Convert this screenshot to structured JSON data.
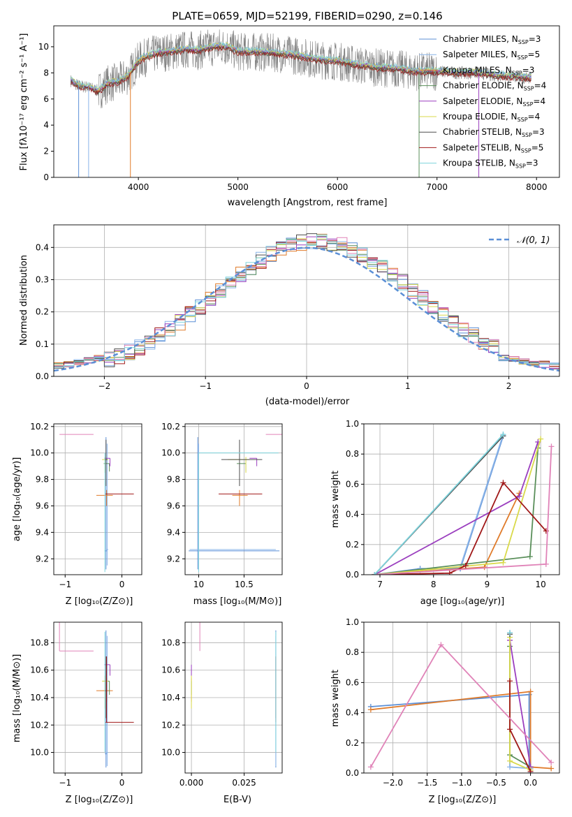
{
  "chart_data": [
    {
      "id": "spectrum",
      "type": "line",
      "title": "PLATE=0659, MJD=52199, FIBERID=0290, z=0.146",
      "xlabel": "wavelength [Angstrom, rest frame]",
      "ylabel": "Flux [fλ10⁻¹⁷ erg cm⁻² s⁻¹ A⁻¹]",
      "xlim": [
        3150,
        8230
      ],
      "ylim": [
        0,
        11.6
      ],
      "xticks": [
        4000,
        5000,
        6000,
        7000,
        8000
      ],
      "yticks": [
        0,
        2,
        4,
        6,
        8,
        10
      ],
      "grid": false,
      "legend_position": "upper right",
      "legend": [
        {
          "label": "Chabrier MILES, N",
          "sub": "SSP",
          "suffix": "=3",
          "color": "#5b8fd6"
        },
        {
          "label": "Salpeter MILES, N",
          "sub": "SSP",
          "suffix": "=5",
          "color": "#8ab4e8"
        },
        {
          "label": "Kroupa MILES, N",
          "sub": "SSP",
          "suffix": "=3",
          "color": "#e07b2a"
        },
        {
          "label": "Chabrier ELODIE, N",
          "sub": "SSP",
          "suffix": "=4",
          "color": "#5a8f5a"
        },
        {
          "label": "Salpeter ELODIE, N",
          "sub": "SSP",
          "suffix": "=4",
          "color": "#9b3fbf"
        },
        {
          "label": "Kroupa ELODIE, N",
          "sub": "SSP",
          "suffix": "=4",
          "color": "#d9d94a"
        },
        {
          "label": "Chabrier STELIB, N",
          "sub": "SSP",
          "suffix": "=3",
          "color": "#4d4d4d"
        },
        {
          "label": "Salpeter STELIB, N",
          "sub": "SSP",
          "suffix": "=5",
          "color": "#a01818"
        },
        {
          "label": "Kroupa STELIB, N",
          "sub": "SSP",
          "suffix": "=3",
          "color": "#7dd3dc"
        }
      ],
      "model_continuum": {
        "x": [
          3320,
          3400,
          3500,
          3600,
          3700,
          3800,
          3900,
          4000,
          4100,
          4200,
          4300,
          4400,
          4500,
          4600,
          4700,
          4800,
          4900,
          5000,
          5200,
          5400,
          5600,
          5800,
          6000,
          6200,
          6400,
          6600,
          6800,
          7000,
          7200,
          7400,
          7600,
          7800,
          7950
        ],
        "y": [
          7.4,
          7.0,
          6.9,
          6.6,
          7.2,
          7.3,
          7.8,
          8.9,
          9.3,
          9.5,
          9.6,
          9.7,
          9.8,
          9.7,
          9.9,
          10.0,
          10.0,
          9.6,
          9.6,
          9.5,
          9.3,
          9.0,
          8.9,
          8.6,
          8.4,
          8.3,
          8.1,
          8.1,
          8.0,
          8.0,
          7.8,
          7.7,
          7.6
        ]
      },
      "dropouts": [
        3400,
        3500,
        3920,
        6820,
        7420
      ]
    },
    {
      "id": "residuals",
      "type": "line",
      "xlabel": "(data-model)/error",
      "ylabel": "Normed distribution",
      "xlim": [
        -2.5,
        2.5
      ],
      "ylim": [
        0,
        0.47
      ],
      "xticks": [
        -2,
        -1,
        0,
        1,
        2
      ],
      "yticks": [
        0.0,
        0.1,
        0.2,
        0.3,
        0.4
      ],
      "grid": true,
      "legend_position": "upper right",
      "reference_curve": {
        "label": "𝒩(0, 1)",
        "mean": 0,
        "sigma": 1,
        "color": "#5b8fd6"
      },
      "bin_width": 0.1
    },
    {
      "id": "age_vs_Z",
      "type": "scatter",
      "xlabel": "Z [log₁₀(Z/Z⊙)]",
      "ylabel": "age  [log₁₀(age/yr)]",
      "xlim": [
        -1.2,
        0.35
      ],
      "ylim": [
        9.08,
        10.22
      ],
      "xticks": [
        -1,
        0
      ],
      "yticks": [
        9.2,
        9.4,
        9.6,
        9.8,
        10.0,
        10.2
      ],
      "grid": true
    },
    {
      "id": "age_vs_mass",
      "type": "scatter",
      "xlabel": "mass [log₁₀(M/M⊙)]",
      "ylabel": "",
      "xlim": [
        9.85,
        10.92
      ],
      "ylim": [
        9.08,
        10.22
      ],
      "xticks": [
        10.0,
        10.5
      ],
      "yticks": [
        9.2,
        9.4,
        9.6,
        9.8,
        10.0,
        10.2
      ],
      "grid": true
    },
    {
      "id": "massweight_vs_age",
      "type": "line",
      "xlabel": "age  [log₁₀(age/yr)]",
      "ylabel": "mass weight",
      "xlim": [
        6.7,
        10.35
      ],
      "ylim": [
        0,
        1.0
      ],
      "xticks": [
        7,
        8,
        9,
        10
      ],
      "yticks": [
        0.0,
        0.2,
        0.4,
        0.6,
        0.8,
        1.0
      ],
      "grid": true
    },
    {
      "id": "mass_vs_Z",
      "type": "scatter",
      "xlabel": "Z [log₁₀(Z/Z⊙)]",
      "ylabel": "mass [log₁₀(M/M⊙)]",
      "xlim": [
        -1.2,
        0.35
      ],
      "ylim": [
        9.85,
        10.95
      ],
      "xticks": [
        -1,
        0
      ],
      "yticks": [
        10.0,
        10.2,
        10.4,
        10.6,
        10.8
      ],
      "grid": true
    },
    {
      "id": "mass_vs_ebv",
      "type": "scatter",
      "xlabel": "E(B-V)",
      "ylabel": "",
      "xlim": [
        -0.003,
        0.043
      ],
      "ylim": [
        9.85,
        10.95
      ],
      "xticks": [
        0.0,
        0.025
      ],
      "xticklabels": [
        "0.000",
        "0.025"
      ],
      "yticks": [
        10.0,
        10.2,
        10.4,
        10.6,
        10.8
      ],
      "grid": true
    },
    {
      "id": "massweight_vs_Z",
      "type": "line",
      "xlabel": "Z [log₁₀(Z/Z⊙)]",
      "ylabel": "mass weight",
      "xlim": [
        -2.42,
        0.42
      ],
      "ylim": [
        0,
        1.0
      ],
      "xticks": [
        -2.0,
        -1.5,
        -1.0,
        -0.5,
        0.0
      ],
      "xticklabels": [
        "−2.0",
        "−1.5",
        "−1.0",
        "−0.5",
        "0.0"
      ],
      "yticks": [
        0.0,
        0.2,
        0.4,
        0.6,
        0.8,
        1.0
      ],
      "grid": true
    }
  ],
  "models": [
    {
      "color": "#5b8fd6",
      "Z": -0.28,
      "Zerr": [
        0.02,
        0.02
      ],
      "age": 9.26,
      "ageerr": [
        0.14,
        0.86
      ],
      "mass": 9.99,
      "masserr": [
        0.1,
        0.9
      ],
      "ebv": 0.04,
      "ages": [
        6.9,
        7.75,
        8.5,
        9.3
      ],
      "w_age": [
        0.0,
        0.04,
        0.04,
        0.92
      ],
      "Zs": [
        -2.32,
        -0.02,
        -0.02,
        0.0
      ],
      "w_Z": [
        0.44,
        0.52,
        0.04,
        0.0
      ]
    },
    {
      "color": "#8ab4e8",
      "Z": -0.26,
      "Zerr": [
        0.02,
        0.02
      ],
      "age": 9.27,
      "ageerr": [
        0.12,
        0.8
      ],
      "mass": 10.0,
      "masserr": [
        0.1,
        0.85
      ],
      "ebv": 0.04,
      "ages": [
        6.9,
        7.75,
        8.5,
        9.3
      ],
      "w_age": [
        0.0,
        0.03,
        0.05,
        0.93
      ],
      "Zs": [
        -0.3,
        -0.3,
        0.0,
        0.0
      ],
      "w_Z": [
        0.93,
        0.04,
        0.03,
        0.0
      ]
    },
    {
      "color": "#e07b2a",
      "Z": -0.27,
      "Zerr": [
        0.18,
        0.11
      ],
      "age": 9.68,
      "ageerr": [
        0.08,
        0.04
      ],
      "mass": 10.45,
      "masserr": [
        0.08,
        0.09
      ],
      "ebv": 0.0,
      "ages": [
        6.9,
        8.95,
        9.6
      ],
      "w_age": [
        0.0,
        0.05,
        0.54
      ],
      "Zs": [
        -2.32,
        0.0,
        0.0,
        0.3
      ],
      "w_Z": [
        0.42,
        0.54,
        0.04,
        0.03
      ]
    },
    {
      "color": "#5a8f5a",
      "Z": -0.22,
      "Zerr": [
        0.1,
        0.0
      ],
      "age": 9.92,
      "ageerr": [
        0.06,
        0.0
      ],
      "mass": 10.52,
      "masserr": [
        0.1,
        0.0
      ],
      "ebv": 0.0,
      "ages": [
        6.9,
        9.8,
        9.95
      ],
      "w_age": [
        0.0,
        0.12,
        0.84
      ],
      "Zs": [
        -0.3,
        -0.3,
        0.0
      ],
      "w_Z": [
        0.84,
        0.12,
        0.04
      ]
    },
    {
      "color": "#9b3fbf",
      "Z": -0.21,
      "Zerr": [
        0.1,
        0.0
      ],
      "age": 9.96,
      "ageerr": [
        0.06,
        0.0
      ],
      "mass": 10.64,
      "masserr": [
        0.08,
        0.0
      ],
      "ebv": 0.0,
      "ages": [
        6.9,
        9.6,
        9.95
      ],
      "w_age": [
        0.0,
        0.52,
        0.88
      ],
      "Zs": [
        -0.3,
        0.0
      ],
      "w_Z": [
        0.88,
        0.04
      ]
    },
    {
      "color": "#d9d94a",
      "Z": -0.3,
      "Zerr": [
        0.05,
        0.06
      ],
      "age": 9.95,
      "ageerr": [
        0.1,
        0.02
      ],
      "mass": 10.52,
      "masserr": [
        0.2,
        0.04
      ],
      "ebv": 0.0,
      "ages": [
        6.9,
        9.3,
        10.0
      ],
      "w_age": [
        0.0,
        0.08,
        0.9
      ],
      "Zs": [
        -0.3,
        -0.3,
        0.0
      ],
      "w_Z": [
        0.9,
        0.08,
        0.02
      ]
    },
    {
      "color": "#4d4d4d",
      "Z": -0.28,
      "Zerr": [
        0.02,
        0.02
      ],
      "age": 9.95,
      "ageerr": [
        0.2,
        0.15
      ],
      "mass": 10.45,
      "masserr": [
        0.2,
        0.25
      ],
      "ebv": 0.04,
      "ages": [
        6.9,
        9.3
      ],
      "w_age": [
        0.0,
        0.92
      ],
      "Zs": [
        -0.3
      ],
      "w_Z": [
        0.92
      ]
    },
    {
      "color": "#a01818",
      "Z": -0.27,
      "Zerr": [
        0.02,
        0.48
      ],
      "age": 9.69,
      "ageerr": [
        0.0,
        0.0
      ],
      "mass": 10.22,
      "masserr": [
        0.0,
        0.48
      ],
      "ebv": 0.04,
      "ages": [
        6.9,
        8.3,
        8.6,
        9.3,
        10.1
      ],
      "w_age": [
        0.0,
        0.01,
        0.06,
        0.61,
        0.29
      ],
      "Zs": [
        -0.3,
        -0.3,
        0.0
      ],
      "w_Z": [
        0.61,
        0.29,
        0.01
      ]
    },
    {
      "color": "#e083b8",
      "Z": -1.1,
      "Zerr": [
        0.0,
        0.6
      ],
      "age": 10.14,
      "ageerr": [
        0.0,
        0.0
      ],
      "mass": 10.74,
      "masserr": [
        0.0,
        0.36
      ],
      "ebv": 0.004,
      "ages": [
        6.9,
        10.1,
        10.2
      ],
      "w_age": [
        0.0,
        0.07,
        0.85
      ],
      "Zs": [
        -2.32,
        -1.3,
        0.3
      ],
      "w_Z": [
        0.04,
        0.85,
        0.07
      ]
    },
    {
      "color": "#7dd3dc",
      "Z": -0.3,
      "Zerr": [
        0.0,
        0.0
      ],
      "age": 10.0,
      "ageerr": [
        0.9,
        0.0
      ],
      "mass": 10.0,
      "masserr": [
        0.0,
        0.88
      ],
      "ebv": 0.04,
      "ages": [
        6.9,
        9.3
      ],
      "w_age": [
        0.0,
        0.93
      ],
      "Zs": [
        -0.3
      ],
      "w_Z": [
        0.93
      ]
    }
  ]
}
